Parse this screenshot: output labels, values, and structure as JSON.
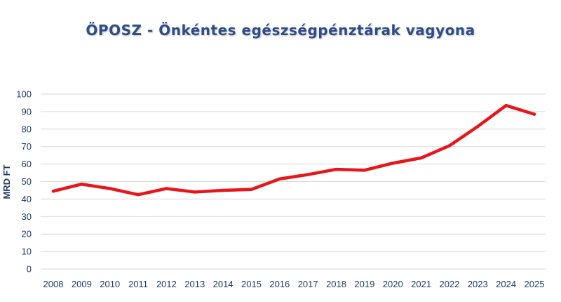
{
  "chart_data": {
    "type": "line",
    "title": "ÖPOSZ - Önkéntes egészségpénztárak vagyona",
    "xlabel": "",
    "ylabel": "MRD FT",
    "x": [
      "2008",
      "2009",
      "2010",
      "2011",
      "2012",
      "2013",
      "2014",
      "2015",
      "2016",
      "2017",
      "2018",
      "2019",
      "2020",
      "2021",
      "2022",
      "2023",
      "2024",
      "2025"
    ],
    "series": [
      {
        "values": [
          44.5,
          48.5,
          46,
          42.5,
          46,
          44,
          45,
          45.5,
          51.5,
          54,
          57,
          56.5,
          60.5,
          63.5,
          70.5,
          81.5,
          93.5,
          88.5
        ],
        "color": "#e8161b"
      }
    ],
    "ylim": [
      0,
      100
    ],
    "yticks": [
      0,
      10,
      20,
      30,
      40,
      50,
      60,
      70,
      80,
      90,
      100
    ],
    "grid": "horizontal",
    "legend": "none"
  }
}
